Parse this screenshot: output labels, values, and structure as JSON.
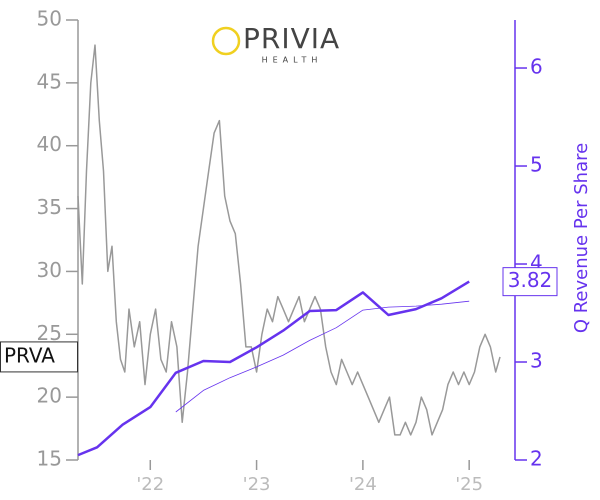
{
  "chart_data": {
    "type": "line",
    "logo": {
      "name": "PRIVIA",
      "sub": "HEALTH"
    },
    "ticker": "PRVA",
    "y2_label": "Q Revenue Per Share",
    "xlim": [
      2021.32,
      2025.29
    ],
    "xticks": [
      {
        "value": 2022,
        "label": "'22"
      },
      {
        "value": 2023,
        "label": "'23"
      },
      {
        "value": 2024,
        "label": "'24"
      },
      {
        "value": 2025,
        "label": "'25"
      }
    ],
    "ylim": [
      15,
      50
    ],
    "yticks": [
      15,
      20,
      25,
      30,
      35,
      40,
      45,
      50
    ],
    "y2lim": [
      2,
      6.49
    ],
    "y2ticks": [
      2,
      3,
      4,
      5,
      6
    ],
    "series": [
      {
        "color": "#999999",
        "width": 1.5,
        "x": [
          2021.32,
          2021.36,
          2021.4,
          2021.44,
          2021.48,
          2021.52,
          2021.56,
          2021.6,
          2021.64,
          2021.68,
          2021.72,
          2021.76,
          2021.8,
          2021.85,
          2021.9,
          2021.95,
          2022.0,
          2022.05,
          2022.1,
          2022.15,
          2022.2,
          2022.25,
          2022.3,
          2022.35,
          2022.4,
          2022.45,
          2022.5,
          2022.55,
          2022.6,
          2022.65,
          2022.7,
          2022.75,
          2022.8,
          2022.85,
          2022.9,
          2022.95,
          2023.0,
          2023.05,
          2023.1,
          2023.15,
          2023.2,
          2023.25,
          2023.3,
          2023.35,
          2023.4,
          2023.45,
          2023.5,
          2023.55,
          2023.6,
          2023.65,
          2023.7,
          2023.75,
          2023.8,
          2023.85,
          2023.9,
          2023.95,
          2024.0,
          2024.05,
          2024.1,
          2024.15,
          2024.2,
          2024.25,
          2024.3,
          2024.35,
          2024.4,
          2024.45,
          2024.5,
          2024.55,
          2024.6,
          2024.65,
          2024.7,
          2024.75,
          2024.8,
          2024.85,
          2024.9,
          2024.95,
          2025.0,
          2025.05,
          2025.1,
          2025.15,
          2025.2,
          2025.25,
          2025.29
        ],
        "values": [
          36,
          29,
          38,
          45,
          48,
          42,
          38,
          30,
          32,
          26,
          23,
          22,
          27,
          24,
          26,
          21,
          25,
          27,
          23,
          22,
          26,
          24,
          18,
          22,
          27,
          32,
          35,
          38,
          41,
          42,
          36,
          34,
          33,
          29,
          24,
          24,
          22,
          25,
          27,
          26,
          28,
          27,
          26,
          27,
          28,
          26,
          27,
          28,
          27,
          24,
          22,
          21,
          23,
          22,
          21,
          22,
          21,
          20,
          19,
          18,
          19,
          20,
          17,
          17,
          18,
          17,
          18,
          20,
          19,
          17,
          18,
          19,
          21,
          22,
          21,
          22,
          21,
          22,
          24,
          25,
          24,
          22,
          23.2
        ]
      },
      {
        "color": "#6633ee",
        "width": 2.5,
        "axis": "y2",
        "x": [
          2021.32,
          2021.5,
          2021.74,
          2022.0,
          2022.24,
          2022.5,
          2022.75,
          2023.0,
          2023.25,
          2023.5,
          2023.75,
          2024.0,
          2024.24,
          2024.5,
          2024.74,
          2025.0
        ],
        "values": [
          2.05,
          2.13,
          2.36,
          2.54,
          2.89,
          3.01,
          3.0,
          3.15,
          3.32,
          3.52,
          3.53,
          3.71,
          3.48,
          3.54,
          3.65,
          3.82
        ]
      },
      {
        "color": "#6633ee",
        "width": 0.8,
        "axis": "y2",
        "x": [
          2022.24,
          2022.5,
          2022.75,
          2023.0,
          2023.25,
          2023.5,
          2023.75,
          2024.0,
          2024.24,
          2024.5,
          2024.74,
          2025.0
        ],
        "values": [
          2.49,
          2.71,
          2.84,
          2.95,
          3.07,
          3.22,
          3.35,
          3.53,
          3.56,
          3.57,
          3.59,
          3.62
        ]
      }
    ]
  }
}
